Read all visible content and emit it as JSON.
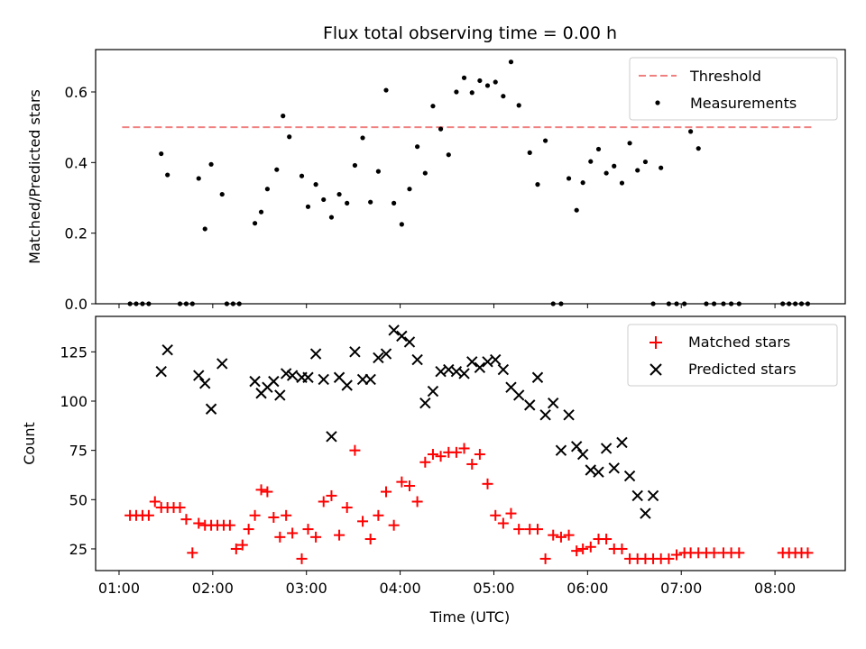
{
  "figure": {
    "title": "Flux total observing time = 0.00 h"
  },
  "chart_data": [
    {
      "type": "scatter",
      "ylabel": "Matched/Predicted stars",
      "xlabel": "",
      "xlim": [
        0.75,
        8.75
      ],
      "ylim": [
        0,
        0.72
      ],
      "yticks": [
        0.0,
        0.2,
        0.4,
        0.6
      ],
      "ytick_labels": [
        "0.0",
        "0.2",
        "0.4",
        "0.6"
      ],
      "grid": false,
      "legend": "top-right",
      "threshold": {
        "name": "Threshold",
        "value": 0.5,
        "x_range": [
          1.033,
          8.4
        ],
        "color": "#f08080",
        "style": "dashed"
      },
      "series": [
        {
          "name": "Measurements",
          "color": "#000000",
          "marker": "dot",
          "x": [
            1.117,
            1.183,
            1.25,
            1.317,
            1.45,
            1.517,
            1.65,
            1.717,
            1.783,
            1.85,
            1.917,
            1.983,
            2.1,
            2.15,
            2.217,
            2.283,
            2.45,
            2.517,
            2.583,
            2.683,
            2.75,
            2.817,
            2.95,
            3.017,
            3.1,
            3.183,
            3.267,
            3.35,
            3.433,
            3.517,
            3.6,
            3.683,
            3.767,
            3.85,
            3.933,
            4.017,
            4.1,
            4.183,
            4.267,
            4.35,
            4.433,
            4.517,
            4.6,
            4.683,
            4.767,
            4.85,
            4.933,
            5.017,
            5.1,
            5.183,
            5.267,
            5.383,
            5.467,
            5.55,
            5.633,
            5.717,
            5.8,
            5.883,
            5.95,
            6.033,
            6.117,
            6.2,
            6.283,
            6.367,
            6.45,
            6.533,
            6.617,
            6.7,
            6.783,
            6.867,
            6.95,
            7.033,
            7.1,
            7.183,
            7.267,
            7.35,
            7.45,
            7.533,
            7.617,
            8.083,
            8.15,
            8.217,
            8.283,
            8.35
          ],
          "y": [
            0,
            0,
            0,
            0,
            0.425,
            0.365,
            0,
            0,
            0,
            0.355,
            0.212,
            0.395,
            0.31,
            0,
            0,
            0,
            0.228,
            0.26,
            0.325,
            0.38,
            0.532,
            0.473,
            0.362,
            0.275,
            0.338,
            0.295,
            0.245,
            0.31,
            0.285,
            0.392,
            0.47,
            0.288,
            0.375,
            0.605,
            0.285,
            0.225,
            0.325,
            0.445,
            0.37,
            0.56,
            0.495,
            0.422,
            0.6,
            0.64,
            0.598,
            0.632,
            0.618,
            0.628,
            0.588,
            0.685,
            0.562,
            0.428,
            0.338,
            0.462,
            0,
            0,
            0.355,
            0.265,
            0.343,
            0.403,
            0.438,
            0.37,
            0.39,
            0.342,
            0.455,
            0.378,
            0.402,
            0,
            0.385,
            0,
            0,
            0,
            0.488,
            0.44,
            0,
            0,
            0,
            0,
            0,
            0,
            0,
            0,
            0,
            0
          ]
        }
      ]
    },
    {
      "type": "scatter",
      "ylabel": "Count",
      "xlabel": "Time (UTC)",
      "xlim": [
        0.75,
        8.75
      ],
      "ylim": [
        14,
        143
      ],
      "yticks": [
        25,
        50,
        75,
        100,
        125
      ],
      "ytick_labels": [
        "25",
        "50",
        "75",
        "100",
        "125"
      ],
      "xticks": [
        1,
        2,
        3,
        4,
        5,
        6,
        7,
        8
      ],
      "xtick_labels": [
        "01:00",
        "02:00",
        "03:00",
        "04:00",
        "05:00",
        "06:00",
        "07:00",
        "08:00"
      ],
      "grid": false,
      "legend": "top-right",
      "series": [
        {
          "name": "Matched stars",
          "color": "#ff0000",
          "marker": "plus",
          "x": [
            1.117,
            1.183,
            1.25,
            1.317,
            1.383,
            1.45,
            1.517,
            1.583,
            1.65,
            1.717,
            1.783,
            1.85,
            1.917,
            1.983,
            2.05,
            2.117,
            2.183,
            2.25,
            2.317,
            2.383,
            2.45,
            2.517,
            2.583,
            2.65,
            2.717,
            2.783,
            2.85,
            2.95,
            3.017,
            3.1,
            3.183,
            3.267,
            3.35,
            3.433,
            3.517,
            3.6,
            3.683,
            3.767,
            3.85,
            3.933,
            4.017,
            4.1,
            4.183,
            4.267,
            4.35,
            4.433,
            4.517,
            4.6,
            4.683,
            4.767,
            4.85,
            4.933,
            5.017,
            5.1,
            5.183,
            5.267,
            5.383,
            5.467,
            5.55,
            5.633,
            5.717,
            5.8,
            5.883,
            5.95,
            6.033,
            6.117,
            6.2,
            6.283,
            6.367,
            6.45,
            6.533,
            6.617,
            6.7,
            6.783,
            6.867,
            6.95,
            7.033,
            7.1,
            7.183,
            7.267,
            7.35,
            7.45,
            7.533,
            7.617,
            8.083,
            8.15,
            8.217,
            8.283,
            8.35
          ],
          "y": [
            42,
            42,
            42,
            42,
            49,
            46,
            46,
            46,
            46,
            40,
            23,
            38,
            37,
            37,
            37,
            37,
            37,
            25,
            27,
            35,
            42,
            55,
            54,
            41,
            31,
            42,
            33,
            20,
            35,
            31,
            49,
            52,
            32,
            46,
            75,
            39,
            30,
            42,
            54,
            37,
            59,
            57,
            49,
            69,
            73,
            72,
            74,
            74,
            76,
            68,
            73,
            58,
            42,
            38,
            43,
            35,
            35,
            35,
            20,
            32,
            31,
            32,
            24,
            25,
            26,
            30,
            30,
            25,
            25,
            20,
            20,
            20,
            20,
            20,
            20,
            22,
            23,
            23,
            23,
            23,
            23,
            23,
            23,
            23,
            23,
            23,
            23,
            23,
            23
          ],
          "y_note": ""
        },
        {
          "name": "Predicted stars",
          "color": "#000000",
          "marker": "x",
          "x": [
            1.45,
            1.517,
            1.85,
            1.917,
            1.983,
            2.1,
            2.45,
            2.517,
            2.583,
            2.65,
            2.717,
            2.783,
            2.85,
            2.95,
            3.017,
            3.1,
            3.183,
            3.267,
            3.35,
            3.433,
            3.517,
            3.6,
            3.683,
            3.767,
            3.85,
            3.933,
            4.017,
            4.1,
            4.183,
            4.267,
            4.35,
            4.433,
            4.517,
            4.6,
            4.683,
            4.767,
            4.85,
            4.933,
            5.017,
            5.1,
            5.183,
            5.267,
            5.383,
            5.467,
            5.55,
            5.633,
            5.717,
            5.8,
            5.883,
            5.95,
            6.033,
            6.117,
            6.2,
            6.283,
            6.367,
            6.45,
            6.533,
            6.617,
            6.7,
            6.783,
            7.183,
            7.267
          ],
          "y": [
            115,
            126,
            113,
            109,
            96,
            119,
            110,
            104,
            107,
            110,
            103,
            114,
            113,
            112,
            112,
            124,
            111,
            82,
            112,
            108,
            125,
            111,
            111,
            122,
            124,
            136,
            133,
            130,
            121,
            99,
            105,
            115,
            116,
            115,
            114,
            120,
            117,
            120,
            121,
            116,
            107,
            103,
            98,
            112,
            93,
            99,
            75,
            93,
            77,
            73,
            65,
            64,
            76,
            66,
            79,
            62,
            52,
            43,
            52,
            null,
            null,
            null
          ],
          "y_note": ""
        }
      ]
    }
  ]
}
